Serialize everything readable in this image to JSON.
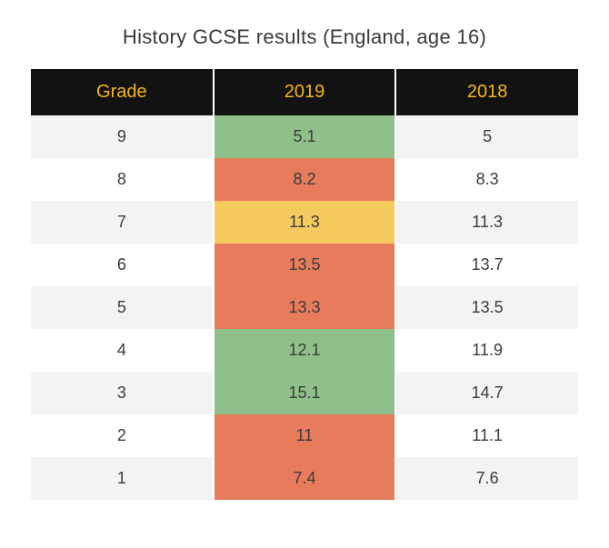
{
  "title": "History GCSE results (England, age 16)",
  "table": {
    "type": "table",
    "header_bg": "#121212",
    "header_text_color": "#f7b617",
    "header_fontsize": 20,
    "body_fontsize": 18,
    "body_text_color": "#3a3a3a",
    "row_bg_odd": "#f3f3f3",
    "row_bg_even": "#ffffff",
    "cell_border_color": "#ffffff",
    "highlight_colors": {
      "green": "#8fc089",
      "red": "#e77c5c",
      "yellow": "#f5cb5f",
      "none": null
    },
    "columns": [
      "Grade",
      "2019",
      "2018"
    ],
    "rows": [
      {
        "grade": "9",
        "y2019": "5.1",
        "y2018": "5",
        "highlight_2019": "green"
      },
      {
        "grade": "8",
        "y2019": "8.2",
        "y2018": "8.3",
        "highlight_2019": "red"
      },
      {
        "grade": "7",
        "y2019": "11.3",
        "y2018": "11.3",
        "highlight_2019": "yellow"
      },
      {
        "grade": "6",
        "y2019": "13.5",
        "y2018": "13.7",
        "highlight_2019": "red"
      },
      {
        "grade": "5",
        "y2019": "13.3",
        "y2018": "13.5",
        "highlight_2019": "red"
      },
      {
        "grade": "4",
        "y2019": "12.1",
        "y2018": "11.9",
        "highlight_2019": "green"
      },
      {
        "grade": "3",
        "y2019": "15.1",
        "y2018": "14.7",
        "highlight_2019": "green"
      },
      {
        "grade": "2",
        "y2019": "11",
        "y2018": "11.1",
        "highlight_2019": "red"
      },
      {
        "grade": "1",
        "y2019": "7.4",
        "y2018": "7.6",
        "highlight_2019": "red"
      }
    ]
  }
}
